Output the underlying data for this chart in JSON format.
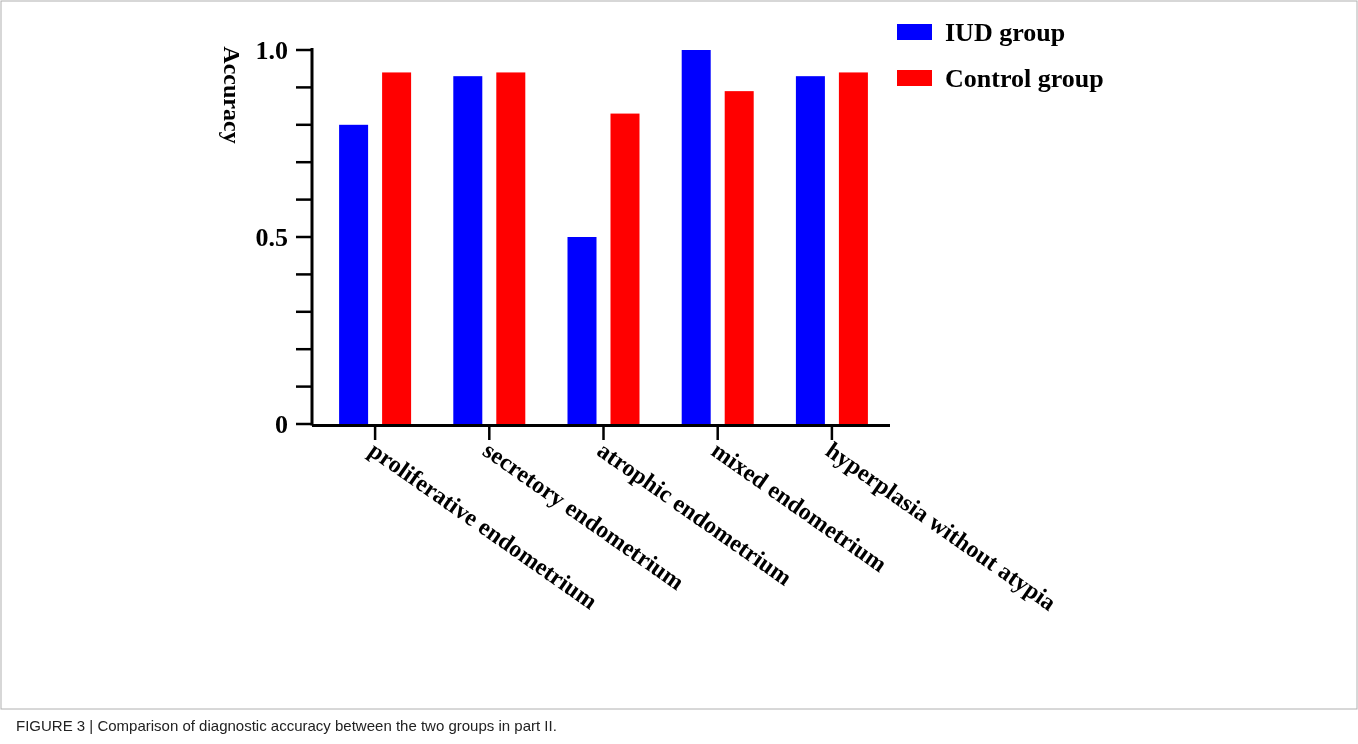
{
  "chart_data": {
    "type": "bar",
    "ylabel": "Accuracy",
    "categories": [
      "proliferative endometrium",
      "secretory endometrium",
      "atrophic endometrium",
      "mixed endometrium",
      "hyperplasia without atypia"
    ],
    "series": [
      {
        "name": "IUD group",
        "color": "#0000ff",
        "values": [
          0.8,
          0.93,
          0.5,
          1.0,
          0.93
        ]
      },
      {
        "name": "Control group",
        "color": "#ff0000",
        "values": [
          0.94,
          0.94,
          0.83,
          0.89,
          0.94
        ]
      }
    ],
    "ylim": [
      0,
      1
    ],
    "yticks": [
      0,
      {
        "value": 0.1,
        "label": null
      },
      {
        "value": 0.2,
        "label": null
      },
      {
        "value": 0.3,
        "label": null
      },
      {
        "value": 0.4,
        "label": null
      },
      0.5,
      {
        "value": 0.6,
        "label": null
      },
      {
        "value": 0.7,
        "label": null
      },
      {
        "value": 0.8,
        "label": null
      },
      {
        "value": 0.9,
        "label": null
      },
      {
        "value": 1,
        "label": "1.0"
      }
    ],
    "legend": "top right",
    "grid": false,
    "annotations": [
      "FIGURE 3 | Comparison of diagnostic accuracy between the two groups in part II."
    ]
  }
}
